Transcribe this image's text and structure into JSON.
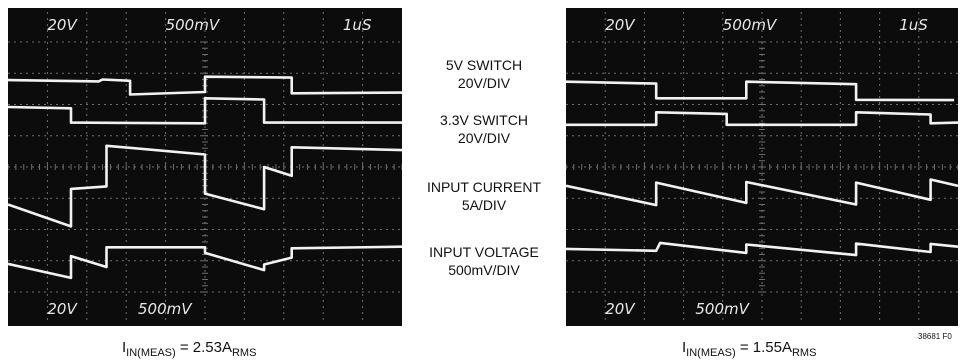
{
  "chart_data": [
    {
      "type": "line",
      "panel": "left",
      "header_readouts": [
        "20V",
        "500mV",
        "1uS"
      ],
      "footer_readouts": [
        "20V",
        "500mV"
      ],
      "grid": true,
      "x_divisions": 10,
      "y_divisions": 8,
      "caption": {
        "main": "I",
        "sub1": "IN(MEAS)",
        "mid": " = 2.53A",
        "sub2": "RMS"
      },
      "series": [
        {
          "name": "5V SWITCH",
          "values": [
            [
              0,
              1.22
            ],
            [
              2.3,
              1.26
            ],
            [
              2.4,
              1.2
            ],
            [
              3.1,
              1.24
            ],
            [
              3.1,
              1.68
            ],
            [
              5,
              1.6
            ],
            [
              5,
              1.11
            ],
            [
              7.2,
              1.14
            ],
            [
              7.2,
              1.64
            ],
            [
              10,
              1.62
            ]
          ]
        },
        {
          "name": "3.3V SWITCH",
          "values": [
            [
              0,
              2.08
            ],
            [
              1.6,
              2.12
            ],
            [
              1.6,
              2.58
            ],
            [
              5,
              2.6
            ],
            [
              5,
              1.8
            ],
            [
              6.5,
              1.84
            ],
            [
              6.5,
              2.58
            ],
            [
              10,
              2.58
            ]
          ]
        },
        {
          "name": "INPUT CURRENT",
          "values": [
            [
              0,
              5.2
            ],
            [
              1.6,
              5.9
            ],
            [
              1.6,
              4.7
            ],
            [
              2.5,
              4.62
            ],
            [
              2.5,
              3.32
            ],
            [
              5,
              3.6
            ],
            [
              5,
              4.85
            ],
            [
              6.5,
              5.35
            ],
            [
              6.5,
              4.0
            ],
            [
              7.2,
              4.28
            ],
            [
              7.2,
              3.37
            ],
            [
              10,
              3.46
            ]
          ]
        },
        {
          "name": "INPUT VOLTAGE",
          "values": [
            [
              0,
              7.1
            ],
            [
              1.6,
              7.55
            ],
            [
              1.6,
              6.85
            ],
            [
              2.5,
              7.2
            ],
            [
              2.5,
              6.57
            ],
            [
              5,
              6.57
            ],
            [
              5,
              6.75
            ],
            [
              6.5,
              7.3
            ],
            [
              6.5,
              7.12
            ],
            [
              7.2,
              6.9
            ],
            [
              7.2,
              6.6
            ],
            [
              10,
              6.55
            ]
          ]
        }
      ]
    },
    {
      "type": "line",
      "panel": "right",
      "header_readouts": [
        "20V",
        "500mV",
        "1uS"
      ],
      "footer_readouts": [
        "20V",
        "500mV"
      ],
      "grid": true,
      "x_divisions": 10,
      "y_divisions": 8,
      "caption": {
        "main": "I",
        "sub1": "IN(MEAS)",
        "mid": " = 1.55A",
        "sub2": "RMS"
      },
      "series": [
        {
          "name": "5V SWITCH",
          "values": [
            [
              0,
              1.27
            ],
            [
              2.3,
              1.33
            ],
            [
              2.3,
              1.8
            ],
            [
              4.6,
              1.8
            ],
            [
              4.6,
              1.27
            ],
            [
              7.4,
              1.35
            ],
            [
              7.4,
              1.85
            ],
            [
              9.9,
              1.86
            ]
          ]
        },
        {
          "name": "3.3V SWITCH",
          "values": [
            [
              0,
              2.65
            ],
            [
              2.3,
              2.65
            ],
            [
              2.3,
              2.25
            ],
            [
              4.1,
              2.3
            ],
            [
              4.1,
              2.65
            ],
            [
              7.4,
              2.65
            ],
            [
              7.4,
              2.25
            ],
            [
              9.3,
              2.32
            ],
            [
              9.3,
              2.6
            ],
            [
              10,
              2.58
            ]
          ]
        },
        {
          "name": "INPUT CURRENT",
          "values": [
            [
              0,
              4.6
            ],
            [
              2.3,
              5.22
            ],
            [
              2.3,
              4.5
            ],
            [
              4.6,
              5.15
            ],
            [
              4.6,
              4.48
            ],
            [
              7.4,
              5.2
            ],
            [
              7.4,
              4.5
            ],
            [
              9.3,
              5.05
            ],
            [
              9.3,
              4.4
            ],
            [
              10,
              4.6
            ]
          ]
        },
        {
          "name": "INPUT VOLTAGE",
          "values": [
            [
              0,
              6.62
            ],
            [
              2.3,
              6.68
            ],
            [
              2.4,
              6.43
            ],
            [
              4.6,
              6.75
            ],
            [
              4.6,
              6.48
            ],
            [
              7.4,
              6.82
            ],
            [
              7.4,
              6.45
            ],
            [
              9.3,
              6.72
            ],
            [
              9.3,
              6.46
            ],
            [
              10,
              6.55
            ]
          ]
        }
      ]
    }
  ],
  "channel_labels": [
    {
      "line1": "5V SWITCH",
      "line2": "20V/DIV"
    },
    {
      "line1": "3.3V SWITCH",
      "line2": "20V/DIV"
    },
    {
      "line1": "INPUT CURRENT",
      "line2": "5A/DIV"
    },
    {
      "line1": "INPUT VOLTAGE",
      "line2": "500mV/DIV"
    }
  ],
  "figure_id": "38681 F0",
  "colors": {
    "screen": "#0c0c0c",
    "grid": "#6e6e6e",
    "trace": "#f2f2f2",
    "readout": "#e8e8e8"
  }
}
